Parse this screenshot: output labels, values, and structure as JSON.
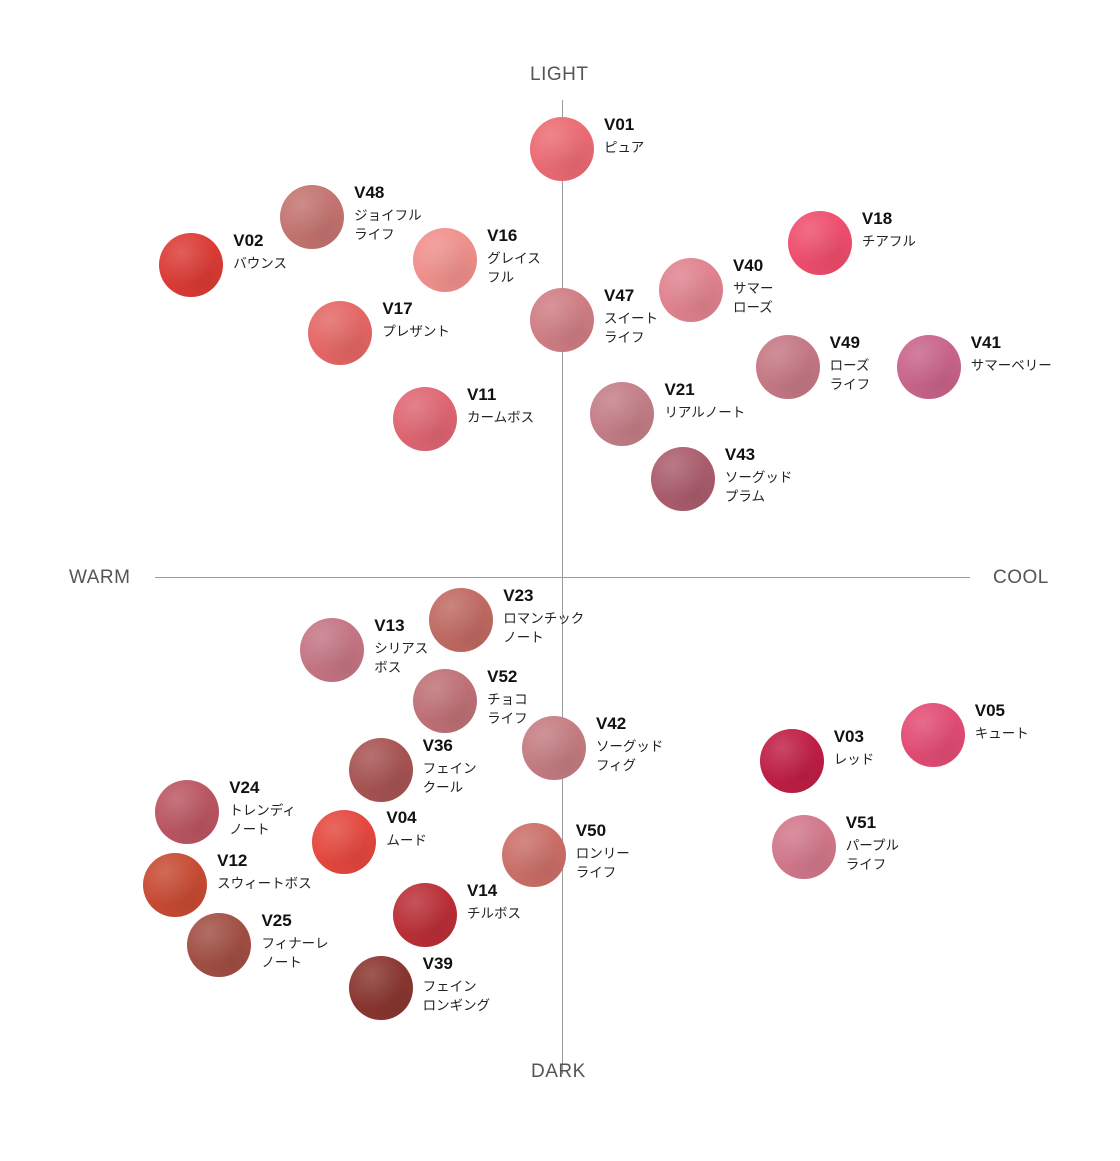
{
  "chart_data": {
    "type": "scatter",
    "axis_labels": {
      "top": "LIGHT",
      "bottom": "DARK",
      "left": "WARM",
      "right": "COOL"
    },
    "grid": false,
    "legend": "none",
    "points": [
      {
        "code": "V01",
        "name": [
          "ピュア"
        ],
        "color": "#ec6b73",
        "x": 0.0,
        "y": 1.0
      },
      {
        "code": "V48",
        "name": [
          "ジョイフル",
          "ライフ"
        ],
        "color": "#c47470",
        "x": -0.62,
        "y": 0.84
      },
      {
        "code": "V16",
        "name": [
          "グレイス",
          "フル"
        ],
        "color": "#f0908c",
        "x": -0.29,
        "y": 0.74
      },
      {
        "code": "V02",
        "name": [
          "バウンス"
        ],
        "color": "#dc3b35",
        "x": -0.92,
        "y": 0.73
      },
      {
        "code": "V18",
        "name": [
          "チアフル"
        ],
        "color": "#ef4e6d",
        "x": 0.64,
        "y": 0.78
      },
      {
        "code": "V40",
        "name": [
          "サマー",
          "ローズ"
        ],
        "color": "#e0838f",
        "x": 0.32,
        "y": 0.67
      },
      {
        "code": "V47",
        "name": [
          "スイート",
          "ライフ"
        ],
        "color": "#cf7e84",
        "x": 0.0,
        "y": 0.6
      },
      {
        "code": "V17",
        "name": [
          "プレザント"
        ],
        "color": "#e56765",
        "x": -0.55,
        "y": 0.57
      },
      {
        "code": "V49",
        "name": [
          "ローズ",
          "ライフ"
        ],
        "color": "#c57885",
        "x": 0.56,
        "y": 0.49
      },
      {
        "code": "V41",
        "name": [
          "サマーベリー"
        ],
        "color": "#c9648a",
        "x": 0.91,
        "y": 0.49
      },
      {
        "code": "V11",
        "name": [
          "カームボス"
        ],
        "color": "#df6673",
        "x": -0.34,
        "y": 0.37
      },
      {
        "code": "V21",
        "name": [
          "リアルノート"
        ],
        "color": "#c47e87",
        "x": 0.15,
        "y": 0.38
      },
      {
        "code": "V43",
        "name": [
          "ソーグッド",
          "プラム"
        ],
        "color": "#ab5d6d",
        "x": 0.3,
        "y": 0.23
      },
      {
        "code": "V23",
        "name": [
          "ロマンチック",
          "ノート"
        ],
        "color": "#c06a62",
        "x": -0.25,
        "y": -0.1
      },
      {
        "code": "V13",
        "name": [
          "シリアス",
          "ボス"
        ],
        "color": "#c57584",
        "x": -0.57,
        "y": -0.17
      },
      {
        "code": "V52",
        "name": [
          "チョコ",
          "ライフ"
        ],
        "color": "#bf7176",
        "x": -0.29,
        "y": -0.29
      },
      {
        "code": "V42",
        "name": [
          "ソーグッド",
          "フィグ"
        ],
        "color": "#c47d82",
        "x": -0.02,
        "y": -0.4
      },
      {
        "code": "V05",
        "name": [
          "キュート"
        ],
        "color": "#e34c74",
        "x": 0.92,
        "y": -0.37
      },
      {
        "code": "V03",
        "name": [
          "レッド"
        ],
        "color": "#c01e45",
        "x": 0.57,
        "y": -0.43
      },
      {
        "code": "V36",
        "name": [
          "フェイン",
          "クール"
        ],
        "color": "#a75452",
        "x": -0.45,
        "y": -0.45
      },
      {
        "code": "V24",
        "name": [
          "トレンディ",
          "ノート"
        ],
        "color": "#bb5662",
        "x": -0.93,
        "y": -0.55
      },
      {
        "code": "V04",
        "name": [
          "ムード"
        ],
        "color": "#e5483e",
        "x": -0.54,
        "y": -0.62
      },
      {
        "code": "V50",
        "name": [
          "ロンリー",
          "ライフ"
        ],
        "color": "#cb6f68",
        "x": -0.07,
        "y": -0.65
      },
      {
        "code": "V51",
        "name": [
          "パープル",
          "ライフ"
        ],
        "color": "#d2788b",
        "x": 0.6,
        "y": -0.63
      },
      {
        "code": "V12",
        "name": [
          "スウィートボス"
        ],
        "color": "#c84b33",
        "x": -0.96,
        "y": -0.72
      },
      {
        "code": "V14",
        "name": [
          "チルボス"
        ],
        "color": "#bb2f37",
        "x": -0.34,
        "y": -0.79
      },
      {
        "code": "V25",
        "name": [
          "フィナーレ",
          "ノート"
        ],
        "color": "#a24f44",
        "x": -0.85,
        "y": -0.86
      },
      {
        "code": "V39",
        "name": [
          "フェイン",
          "ロンギング"
        ],
        "color": "#8a3630",
        "x": -0.45,
        "y": -0.96
      }
    ]
  }
}
